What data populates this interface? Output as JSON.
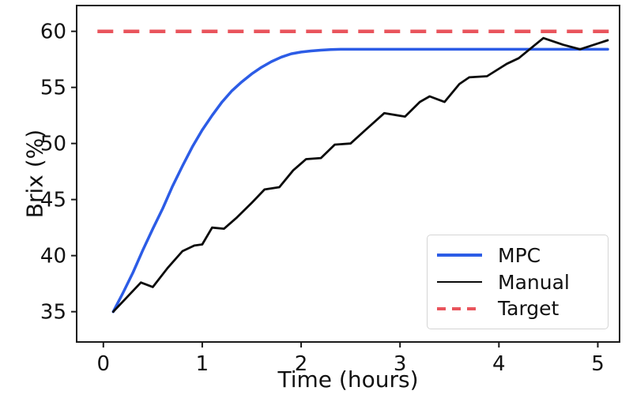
{
  "chart_data": {
    "type": "line",
    "title": "",
    "xlabel": "Time (hours)",
    "ylabel": "Brix (%)",
    "xlim": [
      -0.27,
      5.22
    ],
    "ylim": [
      32.3,
      62.3
    ],
    "xticks": [
      0,
      1,
      2,
      3,
      4,
      5
    ],
    "yticks": [
      35,
      40,
      45,
      50,
      55,
      60
    ],
    "grid": false,
    "colors": {
      "mpc": "#2c5ce6",
      "manual": "#0a0a0a",
      "target": "#e9545c",
      "spine": "#1a1a1a",
      "tick_text": "#111111"
    },
    "legend": {
      "position": "lower-right-inside",
      "entries": [
        {
          "label": "MPC",
          "color": "#2c5ce6",
          "style": "solid"
        },
        {
          "label": "Manual",
          "color": "#0a0a0a",
          "style": "solid"
        },
        {
          "label": "Target",
          "color": "#e9545c",
          "style": "dashed"
        }
      ]
    },
    "series": [
      {
        "name": "MPC",
        "color": "#2c5ce6",
        "style": "solid",
        "width": 3.5,
        "points": [
          [
            0.1,
            35.0
          ],
          [
            0.2,
            36.7
          ],
          [
            0.3,
            38.5
          ],
          [
            0.4,
            40.5
          ],
          [
            0.5,
            42.4
          ],
          [
            0.6,
            44.2
          ],
          [
            0.7,
            46.2
          ],
          [
            0.8,
            48.0
          ],
          [
            0.9,
            49.7
          ],
          [
            1.0,
            51.2
          ],
          [
            1.1,
            52.5
          ],
          [
            1.2,
            53.7
          ],
          [
            1.3,
            54.7
          ],
          [
            1.4,
            55.5
          ],
          [
            1.5,
            56.2
          ],
          [
            1.6,
            56.8
          ],
          [
            1.7,
            57.3
          ],
          [
            1.8,
            57.7
          ],
          [
            1.9,
            58.0
          ],
          [
            2.0,
            58.15
          ],
          [
            2.1,
            58.25
          ],
          [
            2.2,
            58.32
          ],
          [
            2.3,
            58.37
          ],
          [
            2.4,
            58.4
          ],
          [
            2.7,
            58.4
          ],
          [
            3.0,
            58.4
          ],
          [
            3.5,
            58.4
          ],
          [
            4.0,
            58.4
          ],
          [
            4.5,
            58.4
          ],
          [
            5.1,
            58.4
          ]
        ]
      },
      {
        "name": "Manual",
        "color": "#0a0a0a",
        "style": "solid",
        "width": 2.8,
        "points": [
          [
            0.1,
            35.0
          ],
          [
            0.25,
            36.4
          ],
          [
            0.38,
            37.6
          ],
          [
            0.5,
            37.2
          ],
          [
            0.65,
            38.9
          ],
          [
            0.8,
            40.4
          ],
          [
            0.92,
            40.9
          ],
          [
            1.0,
            41.0
          ],
          [
            1.1,
            42.5
          ],
          [
            1.22,
            42.4
          ],
          [
            1.35,
            43.4
          ],
          [
            1.5,
            44.7
          ],
          [
            1.63,
            45.9
          ],
          [
            1.78,
            46.1
          ],
          [
            1.92,
            47.6
          ],
          [
            2.05,
            48.6
          ],
          [
            2.2,
            48.7
          ],
          [
            2.34,
            49.9
          ],
          [
            2.5,
            50.0
          ],
          [
            2.65,
            51.2
          ],
          [
            2.84,
            52.7
          ],
          [
            3.05,
            52.4
          ],
          [
            3.2,
            53.7
          ],
          [
            3.3,
            54.2
          ],
          [
            3.45,
            53.7
          ],
          [
            3.6,
            55.3
          ],
          [
            3.7,
            55.9
          ],
          [
            3.88,
            56.0
          ],
          [
            4.08,
            57.1
          ],
          [
            4.2,
            57.6
          ],
          [
            4.45,
            59.4
          ],
          [
            4.65,
            58.8
          ],
          [
            4.82,
            58.4
          ],
          [
            5.1,
            59.2
          ]
        ]
      },
      {
        "name": "Target",
        "color": "#e9545c",
        "style": "dashed",
        "width": 4.5,
        "points": [
          [
            -0.06,
            60
          ],
          [
            5.13,
            60
          ]
        ]
      }
    ]
  }
}
